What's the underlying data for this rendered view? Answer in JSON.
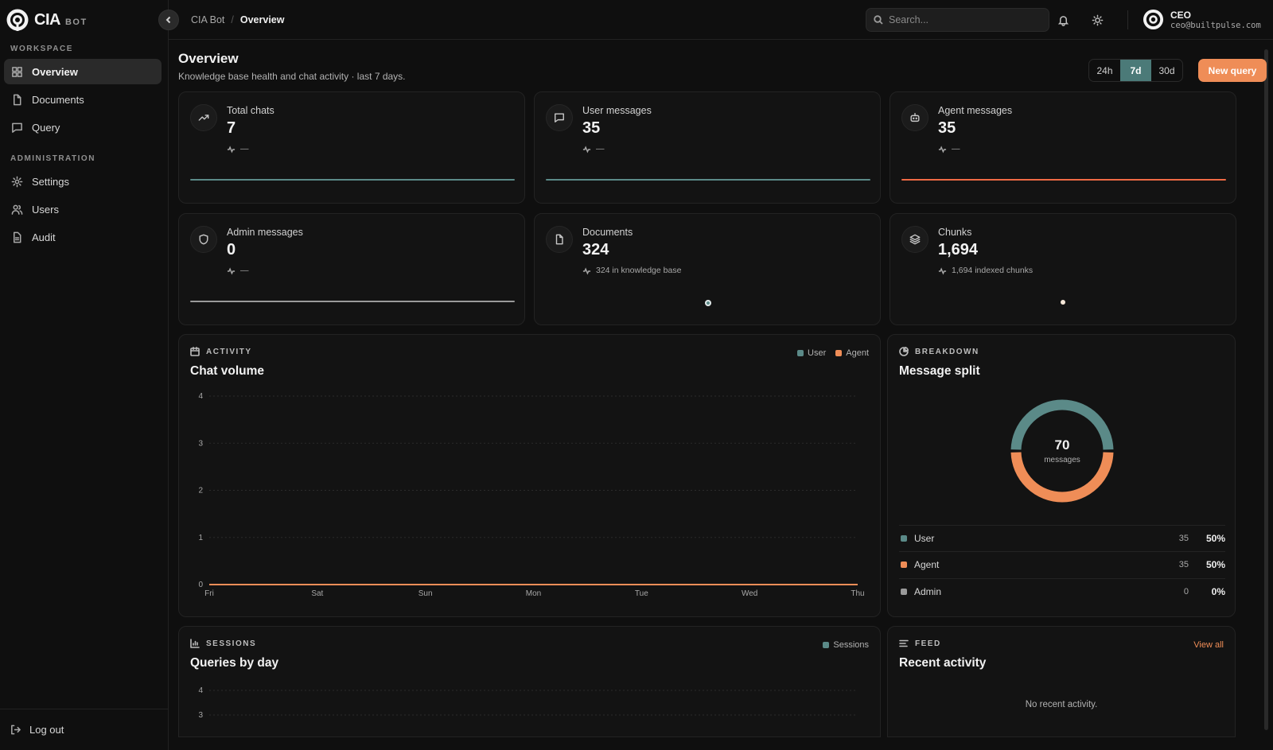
{
  "brand": {
    "name": "CIA",
    "sub": "BOT"
  },
  "sidebar": {
    "sections": [
      {
        "label": "WORKSPACE",
        "items": [
          {
            "label": "Overview",
            "icon": "grid-icon",
            "active": true
          },
          {
            "label": "Documents",
            "icon": "file-icon"
          },
          {
            "label": "Query",
            "icon": "message-icon"
          }
        ]
      },
      {
        "label": "ADMINISTRATION",
        "items": [
          {
            "label": "Settings",
            "icon": "gear-icon"
          },
          {
            "label": "Users",
            "icon": "users-icon"
          },
          {
            "label": "Audit",
            "icon": "audit-icon"
          }
        ]
      }
    ],
    "logout": "Log out"
  },
  "header": {
    "breadcrumb": [
      "CIA Bot",
      "Overview"
    ],
    "search_placeholder": "Search...",
    "user": {
      "role": "CEO",
      "email": "ceo@builtpulse.com"
    }
  },
  "page": {
    "title": "Overview",
    "subtitle": "Knowledge base health and chat activity · last 7 days.",
    "ranges": [
      "24h",
      "7d",
      "30d"
    ],
    "selected_range": "7d",
    "primary_action": "New query"
  },
  "stats": [
    {
      "label": "Total chats",
      "value": "7",
      "sub": "—",
      "icon": "trend-up-icon"
    },
    {
      "label": "User messages",
      "value": "35",
      "sub": "—",
      "icon": "message-icon"
    },
    {
      "label": "Agent messages",
      "value": "35",
      "sub": "—",
      "icon": "bot-icon"
    },
    {
      "label": "Admin messages",
      "value": "0",
      "sub": "—",
      "icon": "shield-icon"
    },
    {
      "label": "Documents",
      "value": "324",
      "sub": "324 in knowledge base",
      "icon": "file-icon"
    },
    {
      "label": "Chunks",
      "value": "1,694",
      "sub": "1,694 indexed chunks",
      "icon": "layers-icon"
    }
  ],
  "colors": {
    "user": "#5b8a88",
    "agent": "#ef8d57",
    "admin": "#9a9a9a",
    "accent": "#ef8d57"
  },
  "activity": {
    "eyebrow": "ACTIVITY",
    "title": "Chat volume",
    "legend": [
      "User",
      "Agent"
    ]
  },
  "breakdown": {
    "eyebrow": "BREAKDOWN",
    "title": "Message split",
    "total": "70",
    "total_label": "messages",
    "rows": [
      {
        "name": "User",
        "count": "35",
        "pct": "50%"
      },
      {
        "name": "Agent",
        "count": "35",
        "pct": "50%"
      },
      {
        "name": "Admin",
        "count": "0",
        "pct": "0%"
      }
    ]
  },
  "sessions": {
    "eyebrow": "SESSIONS",
    "title": "Queries by day",
    "legend": [
      "Sessions"
    ]
  },
  "feed": {
    "eyebrow": "FEED",
    "title": "Recent activity",
    "view_all": "View all",
    "empty": "No recent activity."
  },
  "chart_data": [
    {
      "type": "line",
      "categories": [
        "Fri",
        "Sat",
        "Sun",
        "Mon",
        "Tue",
        "Wed",
        "Thu"
      ],
      "series": [
        {
          "name": "User",
          "values": [
            0,
            0,
            0,
            0,
            0,
            0,
            0
          ]
        },
        {
          "name": "Agent",
          "values": [
            0,
            0,
            0,
            0,
            0,
            0,
            0
          ]
        }
      ],
      "yticks": [
        0,
        1,
        2,
        3,
        4
      ],
      "ylim": [
        0,
        4
      ],
      "grid": true,
      "legend": "top-right"
    },
    {
      "type": "pie",
      "categories": [
        "User",
        "Agent",
        "Admin"
      ],
      "values": [
        35,
        35,
        0
      ]
    },
    {
      "type": "bar",
      "series": [
        {
          "name": "Sessions",
          "values": []
        }
      ],
      "yticks": [
        3,
        4
      ],
      "legend": "top-right"
    }
  ]
}
